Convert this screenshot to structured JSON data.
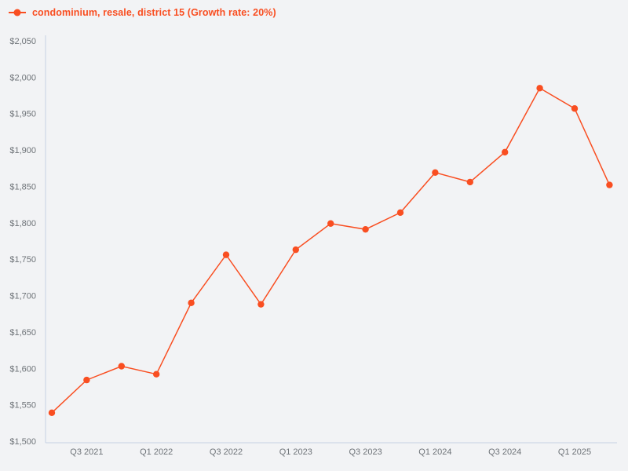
{
  "page": {
    "background": "#f2f3f5"
  },
  "legend": {
    "label": "condominium, resale, district 15 (Growth rate: 20%)",
    "color": "#f94e21",
    "marker": "line-dot"
  },
  "chart_data": {
    "type": "line",
    "title": "",
    "xlabel": "",
    "ylabel": "",
    "legend_position": "top-left",
    "grid": false,
    "ylim": [
      1500,
      2050
    ],
    "y_step": 50,
    "y_ticks": [
      "$1,500",
      "$1,550",
      "$1,600",
      "$1,650",
      "$1,700",
      "$1,750",
      "$1,800",
      "$1,850",
      "$1,900",
      "$1,950",
      "$2,000",
      "$2,050"
    ],
    "categories": [
      "Q2 2021",
      "Q3 2021",
      "Q4 2021",
      "Q1 2022",
      "Q2 2022",
      "Q3 2022",
      "Q4 2022",
      "Q1 2023",
      "Q2 2023",
      "Q3 2023",
      "Q4 2023",
      "Q1 2024",
      "Q2 2024",
      "Q3 2024",
      "Q4 2024",
      "Q1 2025",
      "Q2 2025"
    ],
    "x_tick_labels": [
      "Q3 2021",
      "Q1 2022",
      "Q3 2022",
      "Q1 2023",
      "Q3 2023",
      "Q1 2024",
      "Q3 2024",
      "Q1 2025"
    ],
    "x_tick_indices": [
      1,
      3,
      5,
      7,
      9,
      11,
      13,
      15
    ],
    "series": [
      {
        "name": "condominium, resale, district 15",
        "growth_rate": "20%",
        "color": "#f94e21",
        "values": [
          1539,
          1584,
          1603,
          1592,
          1690,
          1756,
          1688,
          1763,
          1799,
          1791,
          1814,
          1869,
          1856,
          1897,
          1985,
          1957,
          1852
        ]
      }
    ],
    "axis_color": "#c7d1e3",
    "label_color": "#6e7378"
  }
}
